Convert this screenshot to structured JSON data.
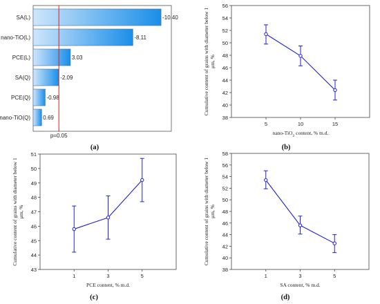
{
  "chart_data": [
    {
      "panel_label": "(a)",
      "type": "bar",
      "orientation": "horizontal",
      "categories": [
        "SA(L)",
        "nano-TiO(L)",
        "PCE(L)",
        "SA(Q)",
        "PCE(Q)",
        "nano-TiO(Q)"
      ],
      "values": [
        -10.4,
        -8.11,
        3.03,
        -2.09,
        -0.98,
        0.69
      ],
      "value_labels": [
        "-10.40",
        "-8.11",
        "3.03",
        "-2.09",
        "-0.98",
        "0.69"
      ],
      "reference_line": {
        "label": "p=0.05",
        "value": 2.09
      },
      "bar_color_from": "#cfe6fb",
      "bar_color_to": "#1a8ee8",
      "reference_color": "#d62020"
    },
    {
      "panel_label": "(b)",
      "type": "line",
      "x": [
        5,
        10,
        15
      ],
      "y": [
        51.4,
        47.9,
        42.4
      ],
      "err_low": [
        49.8,
        46.3,
        40.8
      ],
      "err_high": [
        52.9,
        49.5,
        44.0
      ],
      "xticks": [
        "5",
        "10",
        "15"
      ],
      "xlim": [
        0,
        20
      ],
      "ylim": [
        38,
        56
      ],
      "yticks": [
        38,
        40,
        42,
        44,
        46,
        48,
        50,
        52,
        54,
        56
      ],
      "xlabel_prefix": "nano-TiO",
      "xlabel_sub": "2",
      "xlabel_suffix": " content, % m.d.",
      "ylabel_line1": "Cumulative content of grains with diameter below 1",
      "ylabel_line2": "μm, %",
      "color": "#1f1fd6"
    },
    {
      "panel_label": "(c)",
      "type": "line",
      "x": [
        1,
        3,
        5
      ],
      "y": [
        45.8,
        46.6,
        49.2
      ],
      "err_low": [
        44.2,
        45.1,
        47.7
      ],
      "err_high": [
        47.4,
        48.1,
        50.7
      ],
      "xticks": [
        "1",
        "3",
        "5"
      ],
      "xlim": [
        -1,
        7
      ],
      "ylim": [
        43,
        51
      ],
      "yticks": [
        43,
        44,
        45,
        46,
        47,
        48,
        49,
        50,
        51
      ],
      "xlabel": "PCE content, % m.d.",
      "ylabel_line1": "Cumulative content of grains with diameter below 1",
      "ylabel_line2": "μm, %",
      "color": "#1f1fd6"
    },
    {
      "panel_label": "(d)",
      "type": "line",
      "x": [
        1,
        3,
        5
      ],
      "y": [
        53.4,
        45.6,
        42.5
      ],
      "err_low": [
        51.9,
        44.1,
        40.9
      ],
      "err_high": [
        55.0,
        47.2,
        44.0
      ],
      "xticks": [
        "1",
        "3",
        "5"
      ],
      "xlim": [
        -1,
        7
      ],
      "ylim": [
        38,
        58
      ],
      "yticks": [
        38,
        40,
        42,
        44,
        46,
        48,
        50,
        52,
        54,
        56,
        58
      ],
      "xlabel": "SA content, % m.d.",
      "ylabel_line1": "Cumulative content of grains with diameter below 1",
      "ylabel_line2": "μm, %",
      "color": "#1f1fd6"
    }
  ]
}
